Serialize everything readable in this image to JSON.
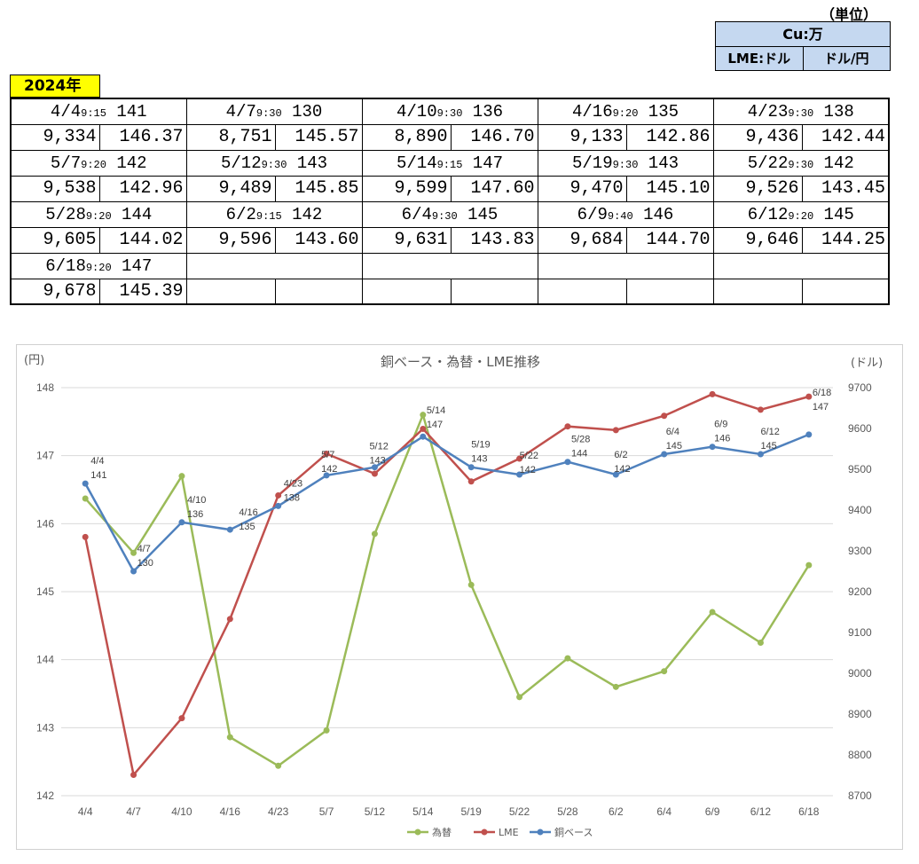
{
  "header": {
    "unit_label": "（単位）",
    "unit_row1": "Cu:万",
    "unit_lme": "LME:ドル",
    "unit_fx": "ドル/円",
    "year": "2024年"
  },
  "table": [
    {
      "date": "4/4",
      "time": "9:15",
      "base": "141",
      "lme": "9,334",
      "fx": "146.37"
    },
    {
      "date": "4/7",
      "time": "9:30",
      "base": "130",
      "lme": "8,751",
      "fx": "145.57"
    },
    {
      "date": "4/10",
      "time": "9:30",
      "base": "136",
      "lme": "8,890",
      "fx": "146.70"
    },
    {
      "date": "4/16",
      "time": "9:20",
      "base": "135",
      "lme": "9,133",
      "fx": "142.86"
    },
    {
      "date": "4/23",
      "time": "9:30",
      "base": "138",
      "lme": "9,436",
      "fx": "142.44"
    },
    {
      "date": "5/7",
      "time": "9:20",
      "base": "142",
      "lme": "9,538",
      "fx": "142.96"
    },
    {
      "date": "5/12",
      "time": "9:30",
      "base": "143",
      "lme": "9,489",
      "fx": "145.85"
    },
    {
      "date": "5/14",
      "time": "9:15",
      "base": "147",
      "lme": "9,599",
      "fx": "147.60"
    },
    {
      "date": "5/19",
      "time": "9:30",
      "base": "143",
      "lme": "9,470",
      "fx": "145.10"
    },
    {
      "date": "5/22",
      "time": "9:30",
      "base": "142",
      "lme": "9,526",
      "fx": "143.45"
    },
    {
      "date": "5/28",
      "time": "9:20",
      "base": "144",
      "lme": "9,605",
      "fx": "144.02"
    },
    {
      "date": "6/2",
      "time": "9:15",
      "base": "142",
      "lme": "9,596",
      "fx": "143.60"
    },
    {
      "date": "6/4",
      "time": "9:30",
      "base": "145",
      "lme": "9,631",
      "fx": "143.83"
    },
    {
      "date": "6/9",
      "time": "9:40",
      "base": "146",
      "lme": "9,684",
      "fx": "144.70"
    },
    {
      "date": "6/12",
      "time": "9:20",
      "base": "145",
      "lme": "9,646",
      "fx": "144.25"
    },
    {
      "date": "6/18",
      "time": "9:20",
      "base": "147",
      "lme": "9,678",
      "fx": "145.39"
    }
  ],
  "chart_data": {
    "type": "line",
    "title": "銅ベース・為替・LME推移",
    "ylabel_left": "(円)",
    "ylabel_right": "(ドル)",
    "categories": [
      "4/4",
      "4/7",
      "4/10",
      "4/16",
      "4/23",
      "5/7",
      "5/12",
      "5/14",
      "5/19",
      "5/22",
      "5/28",
      "6/2",
      "6/4",
      "6/9",
      "6/12",
      "6/18"
    ],
    "ylim_left": [
      142,
      148
    ],
    "yticks_left": [
      142,
      143,
      144,
      145,
      146,
      147,
      148
    ],
    "ylim_right": [
      8700,
      9700
    ],
    "yticks_right": [
      8700,
      8800,
      8900,
      9000,
      9100,
      9200,
      9300,
      9400,
      9500,
      9600,
      9700
    ],
    "grid": true,
    "legend_position": "bottom",
    "series": [
      {
        "name": "為替",
        "axis": "left",
        "color": "#9bbb59",
        "values": [
          146.37,
          145.57,
          146.7,
          142.86,
          142.44,
          142.96,
          145.85,
          147.6,
          145.1,
          143.45,
          144.02,
          143.6,
          143.83,
          144.7,
          144.25,
          145.39
        ]
      },
      {
        "name": "LME",
        "axis": "right",
        "color": "#c0504d",
        "values": [
          9334,
          8751,
          8890,
          9133,
          9436,
          9538,
          9489,
          9599,
          9470,
          9526,
          9605,
          9596,
          9631,
          9684,
          9646,
          9678
        ]
      },
      {
        "name": "銅ベース",
        "axis": "right",
        "color": "#4f81bd",
        "values": [
          9465,
          9250,
          9370,
          9352,
          9410,
          9485,
          9505,
          9580,
          9505,
          9487,
          9518,
          9487,
          9537,
          9555,
          9537,
          9585
        ],
        "labels": [
          "141",
          "130",
          "136",
          "135",
          "138",
          "142",
          "143",
          "147",
          "143",
          "142",
          "144",
          "142",
          "145",
          "146",
          "145",
          "147"
        ]
      }
    ]
  }
}
